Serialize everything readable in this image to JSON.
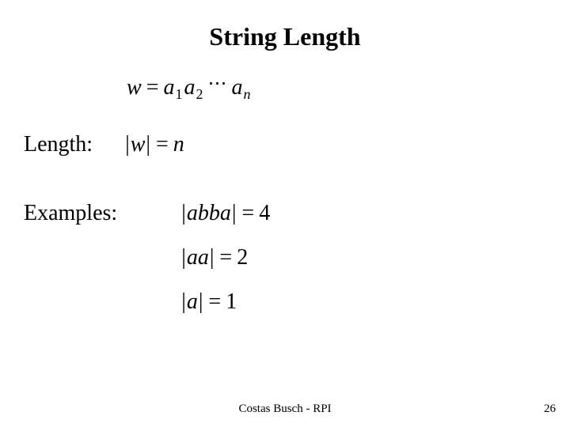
{
  "title": "String Length",
  "labels": {
    "length": "Length:",
    "examples": "Examples:"
  },
  "definition": {
    "lhs": "w",
    "rhs_vars": [
      "a",
      "a",
      "a"
    ],
    "rhs_subs": [
      "1",
      "2",
      "n"
    ],
    "has_ellipsis": true
  },
  "length_formula": {
    "inner": "w",
    "rhs": "n"
  },
  "examples": [
    {
      "inner": "abba",
      "rhs": "4"
    },
    {
      "inner": "aa",
      "rhs": "2"
    },
    {
      "inner": "a",
      "rhs": "1"
    }
  ],
  "footer": {
    "author": "Costas Busch - RPI",
    "page": "26"
  },
  "style": {
    "background_color": "#ffffff",
    "text_color": "#000000",
    "title_fontsize": 32,
    "label_fontsize": 28,
    "math_fontsize": 28,
    "subscript_fontsize": 18,
    "footer_fontsize": 15,
    "title_font": "Comic Sans MS",
    "label_font": "Comic Sans MS",
    "math_font": "Times New Roman"
  }
}
